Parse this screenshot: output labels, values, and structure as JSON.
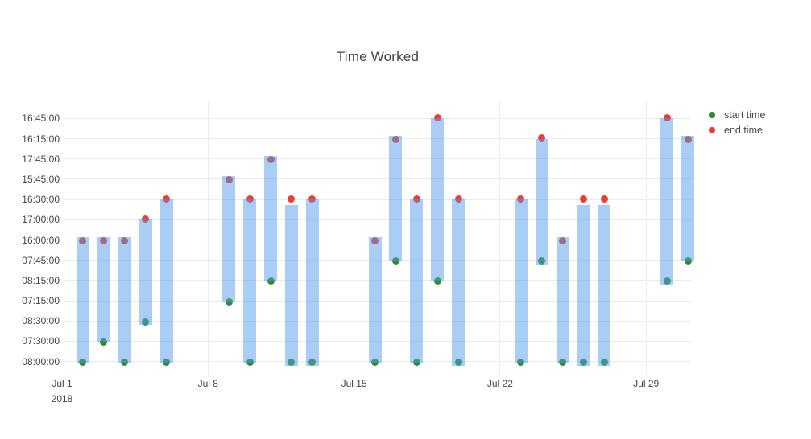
{
  "title": "Time Worked",
  "legend": {
    "items": [
      {
        "label": "start time",
        "color": "#2e8b2e"
      },
      {
        "label": "end time",
        "color": "#ee3b33"
      }
    ]
  },
  "chart_data": {
    "type": "bar",
    "subtype": "vertical range bars: daily work period from start time to end time",
    "title": "Time Worked",
    "bar_color": "rgba(83,155,233,0.5)",
    "grid_color": "#ebebeb",
    "text_color": "#444444",
    "legend_position": "top-right outside plot",
    "x_axis": {
      "ticks": [
        {
          "label": "Jul 1",
          "sublabel": "2018",
          "day": 1
        },
        {
          "label": "Jul 8",
          "day": 8
        },
        {
          "label": "Jul 15",
          "day": 15
        },
        {
          "label": "Jul 22",
          "day": 22
        },
        {
          "label": "Jul 29",
          "day": 29
        }
      ]
    },
    "y_axis": {
      "categories_bottom_to_top": [
        "08:00:00",
        "07:30:00",
        "08:30:00",
        "07:15:00",
        "08:15:00",
        "07:45:00",
        "16:00:00",
        "17:00:00",
        "16:30:00",
        "15:45:00",
        "17:45:00",
        "16:15:00",
        "16:45:00"
      ]
    },
    "series": [
      {
        "name": "start time",
        "color": "#2e8b2e",
        "marker": "dot"
      },
      {
        "name": "end time",
        "color": "#ee3b33",
        "marker": "dot"
      }
    ],
    "days": [
      {
        "date": "Jul 2",
        "day": 2,
        "start": "08:00:00",
        "end": "16:00:00",
        "start_marker": "full",
        "end_marker": "blended"
      },
      {
        "date": "Jul 3",
        "day": 3,
        "start": "07:30:00",
        "end": "16:00:00",
        "start_marker": "full",
        "end_marker": "blended"
      },
      {
        "date": "Jul 4",
        "day": 4,
        "start": "08:00:00",
        "end": "16:00:00",
        "start_marker": "full",
        "end_marker": "blended"
      },
      {
        "date": "Jul 5",
        "day": 5,
        "start": "08:30:00",
        "end": "17:00:00",
        "start_marker": "blended",
        "end_marker": "full"
      },
      {
        "date": "Jul 6",
        "day": 6,
        "start": "08:00:00",
        "end": "16:30:00",
        "start_marker": "full",
        "end_marker": "full"
      },
      {
        "date": "Jul 9",
        "day": 9,
        "start": "07:15:00",
        "end": "15:45:00",
        "start_marker": "full",
        "end_marker": "blended"
      },
      {
        "date": "Jul 10",
        "day": 10,
        "start": "08:00:00",
        "end": "16:30:00",
        "start_marker": "full",
        "end_marker": "full"
      },
      {
        "date": "Jul 11",
        "day": 11,
        "start": "08:15:00",
        "end": "17:45:00",
        "start_marker": "full",
        "end_marker": "blended"
      },
      {
        "date": "Jul 12",
        "day": 12,
        "start": "08:00:00",
        "end": "16:30:00",
        "start_marker": "blended",
        "end_marker": "above-bar"
      },
      {
        "date": "Jul 13",
        "day": 13,
        "start": "08:00:00",
        "end": "16:30:00",
        "start_marker": "blended",
        "end_marker": "full"
      },
      {
        "date": "Jul 16",
        "day": 16,
        "start": "08:00:00",
        "end": "16:00:00",
        "start_marker": "full",
        "end_marker": "blended"
      },
      {
        "date": "Jul 17",
        "day": 17,
        "start": "07:45:00",
        "end": "16:15:00",
        "start_marker": "full",
        "end_marker": "blended"
      },
      {
        "date": "Jul 18",
        "day": 18,
        "start": "08:00:00",
        "end": "16:30:00",
        "start_marker": "full",
        "end_marker": "full"
      },
      {
        "date": "Jul 19",
        "day": 19,
        "start": "08:15:00",
        "end": "16:45:00",
        "start_marker": "full",
        "end_marker": "full"
      },
      {
        "date": "Jul 20",
        "day": 20,
        "start": "08:00:00",
        "end": "16:30:00",
        "start_marker": "blended",
        "end_marker": "full"
      },
      {
        "date": "Jul 23",
        "day": 23,
        "start": "08:00:00",
        "end": "16:30:00",
        "start_marker": "full",
        "end_marker": "full"
      },
      {
        "date": "Jul 24",
        "day": 24,
        "start": "07:45:00",
        "end": "16:15:00",
        "start_marker": "blended",
        "end_marker": "full"
      },
      {
        "date": "Jul 25",
        "day": 25,
        "start": "08:00:00",
        "end": "16:00:00",
        "start_marker": "full",
        "end_marker": "blended"
      },
      {
        "date": "Jul 26",
        "day": 26,
        "start": "08:00:00",
        "end": "16:30:00",
        "start_marker": "blended",
        "end_marker": "above-bar"
      },
      {
        "date": "Jul 27",
        "day": 27,
        "start": "08:00:00",
        "end": "16:30:00",
        "start_marker": "blended",
        "end_marker": "above-bar"
      },
      {
        "date": "Jul 30",
        "day": 30,
        "start": "08:15:00",
        "end": "16:45:00",
        "start_marker": "blended",
        "end_marker": "full"
      },
      {
        "date": "Jul 31",
        "day": 31,
        "start": "07:45:00",
        "end": "16:15:00",
        "start_marker": "full",
        "end_marker": "blended"
      }
    ]
  }
}
